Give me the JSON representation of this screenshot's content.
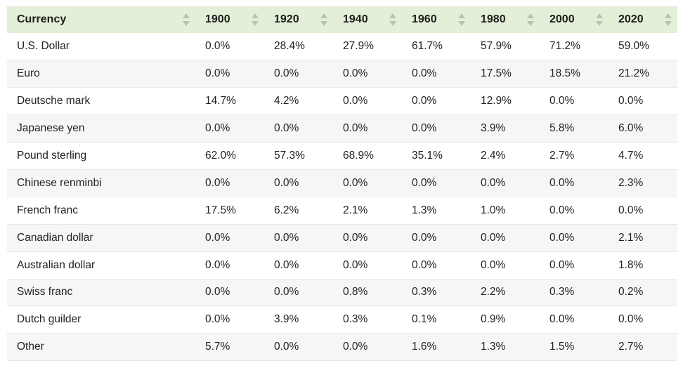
{
  "table": {
    "header": [
      "Currency",
      "1900",
      "1920",
      "1940",
      "1960",
      "1980",
      "2000",
      "2020"
    ],
    "rows": [
      [
        "U.S. Dollar",
        "0.0%",
        "28.4%",
        "27.9%",
        "61.7%",
        "57.9%",
        "71.2%",
        "59.0%"
      ],
      [
        "Euro",
        "0.0%",
        "0.0%",
        "0.0%",
        "0.0%",
        "17.5%",
        "18.5%",
        "21.2%"
      ],
      [
        "Deutsche mark",
        "14.7%",
        "4.2%",
        "0.0%",
        "0.0%",
        "12.9%",
        "0.0%",
        "0.0%"
      ],
      [
        "Japanese yen",
        "0.0%",
        "0.0%",
        "0.0%",
        "0.0%",
        "3.9%",
        "5.8%",
        "6.0%"
      ],
      [
        "Pound sterling",
        "62.0%",
        "57.3%",
        "68.9%",
        "35.1%",
        "2.4%",
        "2.7%",
        "4.7%"
      ],
      [
        "Chinese renminbi",
        "0.0%",
        "0.0%",
        "0.0%",
        "0.0%",
        "0.0%",
        "0.0%",
        "2.3%"
      ],
      [
        "French franc",
        "17.5%",
        "6.2%",
        "2.1%",
        "1.3%",
        "1.0%",
        "0.0%",
        "0.0%"
      ],
      [
        "Canadian dollar",
        "0.0%",
        "0.0%",
        "0.0%",
        "0.0%",
        "0.0%",
        "0.0%",
        "2.1%"
      ],
      [
        "Australian dollar",
        "0.0%",
        "0.0%",
        "0.0%",
        "0.0%",
        "0.0%",
        "0.0%",
        "1.8%"
      ],
      [
        "Swiss franc",
        "0.0%",
        "0.0%",
        "0.8%",
        "0.3%",
        "2.2%",
        "0.3%",
        "0.2%"
      ],
      [
        "Dutch guilder",
        "0.0%",
        "3.9%",
        "0.3%",
        "0.1%",
        "0.9%",
        "0.0%",
        "0.0%"
      ],
      [
        "Other",
        "5.7%",
        "0.0%",
        "0.0%",
        "1.6%",
        "1.3%",
        "1.5%",
        "2.7%"
      ]
    ]
  },
  "chart_data": {
    "type": "table",
    "columns": [
      "Currency",
      "1900",
      "1920",
      "1940",
      "1960",
      "1980",
      "2000",
      "2020"
    ],
    "rows": [
      {
        "currency": "U.S. Dollar",
        "values": [
          0.0,
          28.4,
          27.9,
          61.7,
          57.9,
          71.2,
          59.0
        ]
      },
      {
        "currency": "Euro",
        "values": [
          0.0,
          0.0,
          0.0,
          0.0,
          17.5,
          18.5,
          21.2
        ]
      },
      {
        "currency": "Deutsche mark",
        "values": [
          14.7,
          4.2,
          0.0,
          0.0,
          12.9,
          0.0,
          0.0
        ]
      },
      {
        "currency": "Japanese yen",
        "values": [
          0.0,
          0.0,
          0.0,
          0.0,
          3.9,
          5.8,
          6.0
        ]
      },
      {
        "currency": "Pound sterling",
        "values": [
          62.0,
          57.3,
          68.9,
          35.1,
          2.4,
          2.7,
          4.7
        ]
      },
      {
        "currency": "Chinese renminbi",
        "values": [
          0.0,
          0.0,
          0.0,
          0.0,
          0.0,
          0.0,
          2.3
        ]
      },
      {
        "currency": "French franc",
        "values": [
          17.5,
          6.2,
          2.1,
          1.3,
          1.0,
          0.0,
          0.0
        ]
      },
      {
        "currency": "Canadian dollar",
        "values": [
          0.0,
          0.0,
          0.0,
          0.0,
          0.0,
          0.0,
          2.1
        ]
      },
      {
        "currency": "Australian dollar",
        "values": [
          0.0,
          0.0,
          0.0,
          0.0,
          0.0,
          0.0,
          1.8
        ]
      },
      {
        "currency": "Swiss franc",
        "values": [
          0.0,
          0.0,
          0.8,
          0.3,
          2.2,
          0.3,
          0.2
        ]
      },
      {
        "currency": "Dutch guilder",
        "values": [
          0.0,
          3.9,
          0.3,
          0.1,
          0.9,
          0.0,
          0.0
        ]
      },
      {
        "currency": "Other",
        "values": [
          5.7,
          0.0,
          0.0,
          1.6,
          1.3,
          1.5,
          2.7
        ]
      }
    ],
    "value_unit": "%"
  },
  "icons": {
    "sort": "sort-arrows-icon"
  },
  "colors": {
    "header_bg": "#e3efd8",
    "stripe_bg": "#f6f6f6",
    "sort_icon": "#b8c2b7"
  }
}
